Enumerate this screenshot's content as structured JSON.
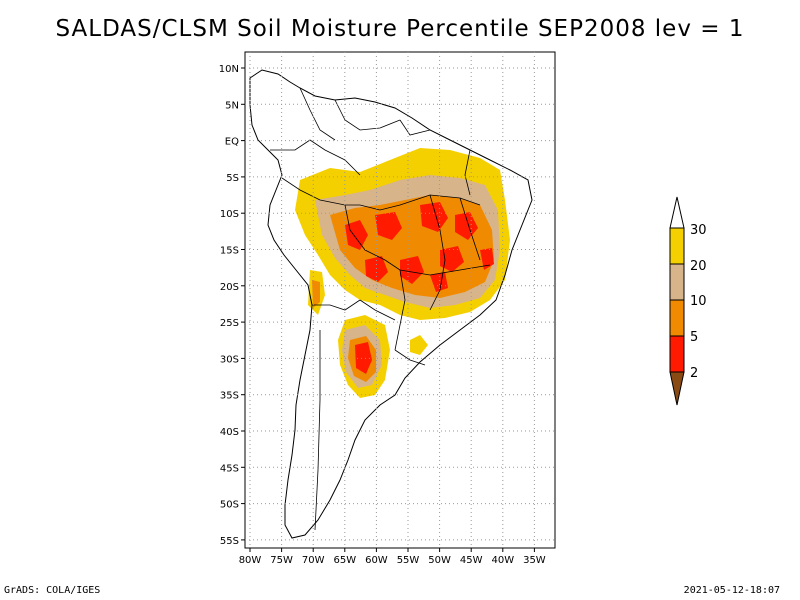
{
  "title": "SALDAS/CLSM Soil Moisture Percentile SEP2008 lev = 1",
  "footer": {
    "left": "GrADS: COLA/IGES",
    "right": "2021-05-12-18:07"
  },
  "axes": {
    "lat_labels": [
      "10N",
      "5N",
      "EQ",
      "5S",
      "10S",
      "15S",
      "20S",
      "25S",
      "30S",
      "35S",
      "40S",
      "45S",
      "50S",
      "55S"
    ],
    "lon_labels": [
      "80W",
      "75W",
      "70W",
      "65W",
      "60W",
      "55W",
      "50W",
      "45W",
      "40W",
      "35W"
    ]
  },
  "legend": {
    "labels": [
      "30",
      "20",
      "10",
      "5",
      "2"
    ],
    "colors": {
      "above_30": "#ffffff",
      "c20_30": "#f5d000",
      "c10_20": "#d8b48a",
      "c5_10": "#f08a00",
      "c2_5": "#ff1a00",
      "below_2": "#8a4a14"
    }
  },
  "colors": {
    "land_outline": "#000000",
    "grid": "#999999"
  }
}
